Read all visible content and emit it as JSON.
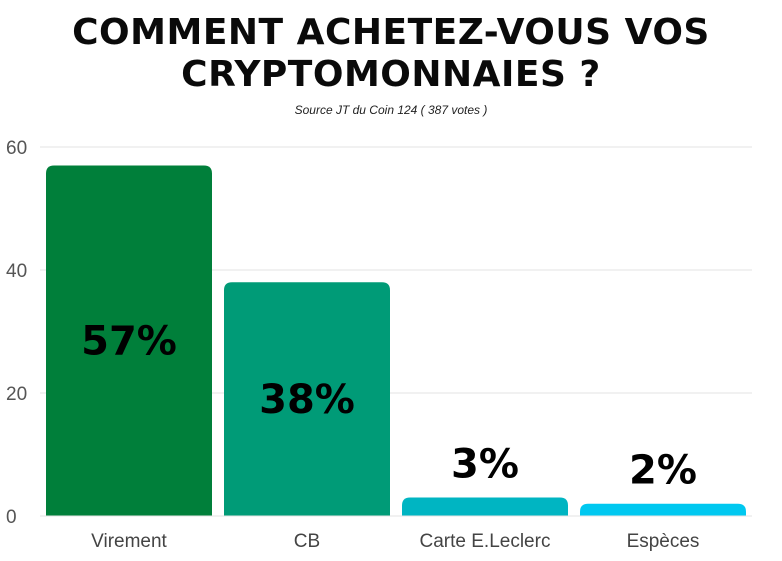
{
  "chart_data": {
    "type": "bar",
    "title": "Comment achetez-vous vos cryptomonnaies ?",
    "subtitle": "Source JT du Coin 124 ( 387 votes )",
    "categories": [
      "Virement",
      "CB",
      "Carte E.Leclerc",
      "Espèces"
    ],
    "values": [
      57,
      38,
      3,
      2
    ],
    "data_labels": [
      "57%",
      "38%",
      "3%",
      "2%"
    ],
    "colors": [
      "#007f3a",
      "#009b77",
      "#00b5c2",
      "#00c8f0"
    ],
    "xlabel": "",
    "ylabel": "",
    "ylim": [
      0,
      60
    ],
    "yticks": [
      0,
      20,
      40,
      60
    ],
    "grid": true,
    "legend": "none"
  }
}
